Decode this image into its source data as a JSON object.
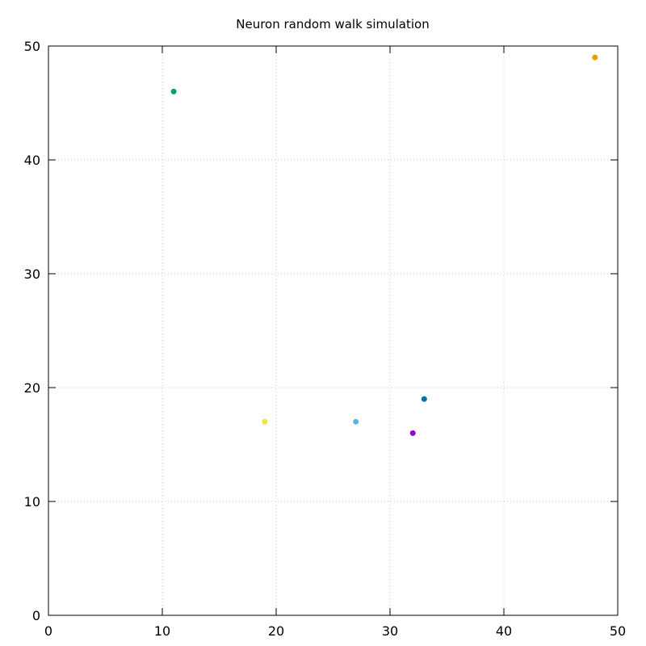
{
  "chart_data": {
    "type": "scatter",
    "title": "Neuron random walk simulation",
    "xlabel": "",
    "ylabel": "",
    "xlim": [
      0,
      50
    ],
    "ylim": [
      0,
      50
    ],
    "xticks": [
      "0",
      "10",
      "20",
      "30",
      "40",
      "50"
    ],
    "yticks": [
      "0",
      "10",
      "20",
      "30",
      "40",
      "50"
    ],
    "grid": true,
    "legend": "none",
    "points": [
      {
        "x": 11,
        "y": 46,
        "color": "#009e73"
      },
      {
        "x": 48,
        "y": 49,
        "color": "#e69f00"
      },
      {
        "x": 33,
        "y": 19,
        "color": "#0072b2"
      },
      {
        "x": 19,
        "y": 17,
        "color": "#f0e442"
      },
      {
        "x": 27,
        "y": 17,
        "color": "#56b4e9"
      },
      {
        "x": 32,
        "y": 16,
        "color": "#9400d3"
      }
    ]
  }
}
